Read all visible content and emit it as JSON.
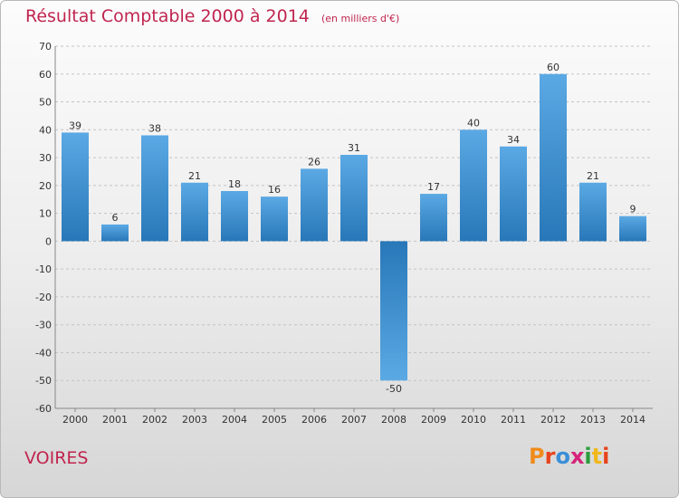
{
  "header": {
    "title": "Résultat Comptable 2000 à 2014",
    "unit": "(en milliers d'€)"
  },
  "footer": {
    "town": "VOIRES",
    "logo": {
      "text": "Proxiti",
      "letter_colors": [
        "#f08c1c",
        "#e8431c",
        "#3a8fd8",
        "#d6237a",
        "#2a9d3c",
        "#f0b81c",
        "#e8431c"
      ]
    }
  },
  "colors": {
    "title": "#c0254f",
    "bar_top": "#5ba9e4",
    "bar_bottom": "#2877b8"
  },
  "chart_data": {
    "type": "bar",
    "categories": [
      "2000",
      "2001",
      "2002",
      "2003",
      "2004",
      "2005",
      "2006",
      "2007",
      "2008",
      "2009",
      "2010",
      "2011",
      "2012",
      "2013",
      "2014"
    ],
    "values": [
      39,
      6,
      38,
      21,
      18,
      16,
      26,
      31,
      -50,
      17,
      40,
      34,
      60,
      21,
      9
    ],
    "ylim": [
      -60,
      70
    ],
    "yticks": [
      70,
      60,
      50,
      40,
      30,
      20,
      10,
      0,
      -10,
      -20,
      -30,
      -40,
      -50,
      -60
    ],
    "grid": true,
    "data_labels": true
  }
}
